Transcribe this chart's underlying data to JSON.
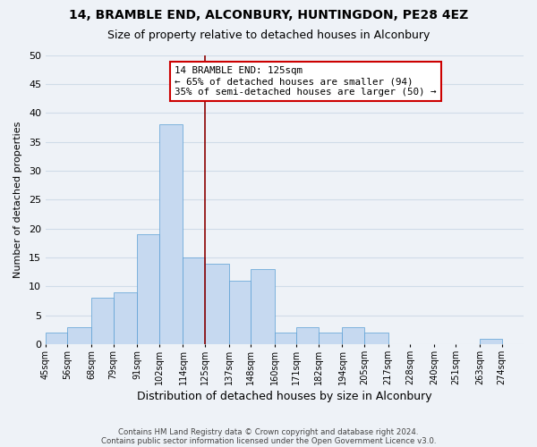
{
  "title": "14, BRAMBLE END, ALCONBURY, HUNTINGDON, PE28 4EZ",
  "subtitle": "Size of property relative to detached houses in Alconbury",
  "xlabel": "Distribution of detached houses by size in Alconbury",
  "ylabel": "Number of detached properties",
  "bin_labels": [
    "45sqm",
    "56sqm",
    "68sqm",
    "79sqm",
    "91sqm",
    "102sqm",
    "114sqm",
    "125sqm",
    "137sqm",
    "148sqm",
    "160sqm",
    "171sqm",
    "182sqm",
    "194sqm",
    "205sqm",
    "217sqm",
    "228sqm",
    "240sqm",
    "251sqm",
    "263sqm",
    "274sqm"
  ],
  "bin_edges": [
    45,
    56,
    68,
    79,
    91,
    102,
    114,
    125,
    137,
    148,
    160,
    171,
    182,
    194,
    205,
    217,
    228,
    240,
    251,
    263,
    274
  ],
  "counts": [
    2,
    3,
    8,
    9,
    19,
    38,
    15,
    14,
    11,
    13,
    2,
    3,
    2,
    3,
    2,
    0,
    0,
    0,
    0,
    1,
    0
  ],
  "bar_color": "#c6d9f0",
  "bar_edge_color": "#5a9fd4",
  "grid_color": "#d0dce8",
  "property_value": 125,
  "property_line_color": "#8b0000",
  "annotation_line1": "14 BRAMBLE END: 125sqm",
  "annotation_line2": "← 65% of detached houses are smaller (94)",
  "annotation_line3": "35% of semi-detached houses are larger (50) →",
  "annotation_box_color": "#ffffff",
  "annotation_box_edge_color": "#cc0000",
  "ylim": [
    0,
    50
  ],
  "yticks": [
    0,
    5,
    10,
    15,
    20,
    25,
    30,
    35,
    40,
    45,
    50
  ],
  "footer_line1": "Contains HM Land Registry data © Crown copyright and database right 2024.",
  "footer_line2": "Contains public sector information licensed under the Open Government Licence v3.0.",
  "background_color": "#eef2f7",
  "title_fontsize": 10,
  "subtitle_fontsize": 9,
  "tick_label_fontsize": 7,
  "ylabel_fontsize": 8,
  "xlabel_fontsize": 9
}
